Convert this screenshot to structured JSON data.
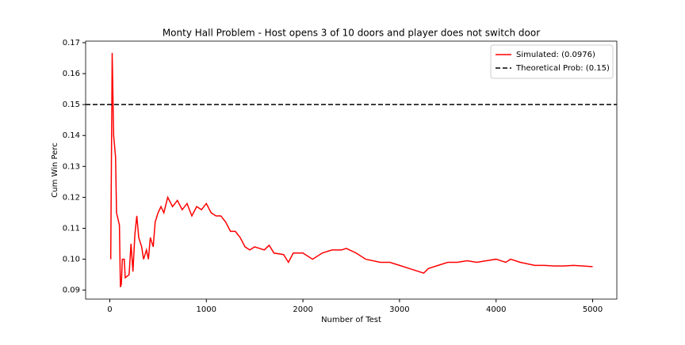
{
  "chart_data": {
    "type": "line",
    "title": "Monty Hall Problem - Host opens 3 of 10 doors and player does not switch door",
    "x_label": "Number of Test",
    "y_label": "Cum Win Perc",
    "x": [
      10,
      25,
      40,
      60,
      70,
      100,
      110,
      120,
      130,
      150,
      160,
      200,
      220,
      240,
      260,
      280,
      300,
      330,
      350,
      380,
      400,
      420,
      450,
      470,
      500,
      530,
      560,
      600,
      650,
      700,
      750,
      800,
      850,
      900,
      950,
      1000,
      1050,
      1100,
      1150,
      1200,
      1250,
      1300,
      1350,
      1400,
      1450,
      1500,
      1600,
      1650,
      1700,
      1800,
      1850,
      1900,
      2000,
      2100,
      2200,
      2300,
      2400,
      2450,
      2550,
      2650,
      2800,
      2900,
      3000,
      3100,
      3200,
      3250,
      3300,
      3400,
      3500,
      3600,
      3700,
      3800,
      3900,
      4000,
      4100,
      4150,
      4250,
      4400,
      4500,
      4600,
      4700,
      4800,
      4900,
      5000
    ],
    "series": [
      {
        "name": "Simulated: (0.0976)",
        "color": "#ff0000",
        "values": [
          0.1,
          0.1667,
          0.14,
          0.133,
          0.115,
          0.111,
          0.091,
          0.092,
          0.1,
          0.1,
          0.094,
          0.095,
          0.105,
          0.096,
          0.108,
          0.114,
          0.107,
          0.104,
          0.1,
          0.103,
          0.1,
          0.107,
          0.104,
          0.112,
          0.115,
          0.117,
          0.115,
          0.12,
          0.117,
          0.119,
          0.116,
          0.118,
          0.114,
          0.117,
          0.116,
          0.118,
          0.115,
          0.114,
          0.114,
          0.112,
          0.109,
          0.109,
          0.107,
          0.104,
          0.103,
          0.104,
          0.103,
          0.1045,
          0.102,
          0.1015,
          0.099,
          0.102,
          0.102,
          0.1,
          0.102,
          0.103,
          0.103,
          0.1035,
          0.102,
          0.1,
          0.099,
          0.099,
          0.098,
          0.097,
          0.096,
          0.0955,
          0.097,
          0.098,
          0.099,
          0.099,
          0.0995,
          0.099,
          0.0995,
          0.1,
          0.099,
          0.1,
          0.099,
          0.098,
          0.098,
          0.0978,
          0.0978,
          0.098,
          0.0978,
          0.0976
        ]
      }
    ],
    "reference_line": {
      "name": "Theoretical Prob: (0.15)",
      "value": 0.15,
      "color": "#000000"
    },
    "xlim": [
      -250,
      5250
    ],
    "ylim": [
      0.0871,
      0.1705
    ],
    "xticks": [
      0,
      1000,
      2000,
      3000,
      4000,
      5000
    ],
    "yticks": [
      0.09,
      {
        "value": 0.1,
        "label": "0.10"
      },
      0.11,
      0.12,
      0.13,
      0.14,
      0.15,
      0.16,
      0.17
    ],
    "legend": "upper right"
  }
}
